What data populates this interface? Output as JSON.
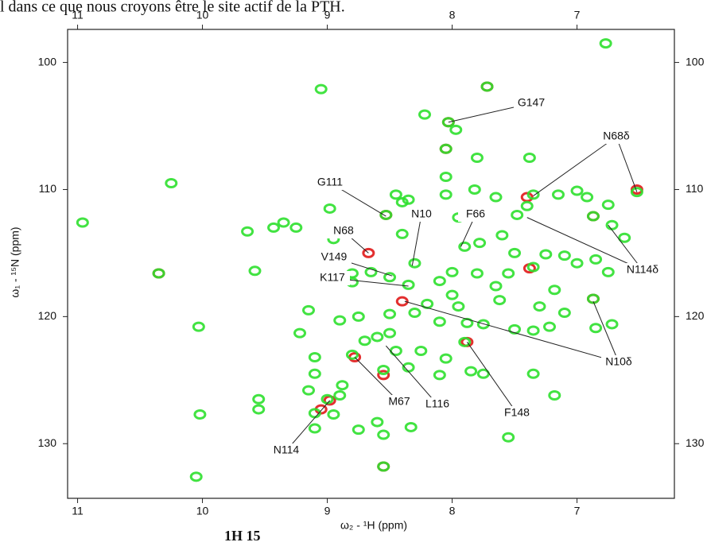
{
  "caption_top": "l dans ce que nous croyons être le site actif de la PTH.",
  "caption_bottom": "1H 15",
  "chart_data": {
    "type": "scatter",
    "x_label": "ω₂ - ¹H (ppm)",
    "y_label": "ω₁ - ¹⁵N (ppm)",
    "xlim": [
      11.08,
      6.22
    ],
    "ylim": [
      134.3,
      97.4
    ],
    "xticks": [
      11,
      10,
      9,
      8,
      7
    ],
    "yticks": [
      100,
      110,
      120,
      130
    ],
    "series": [
      {
        "color": "#e01818",
        "x": [
          8.03,
          8.53,
          6.52,
          7.4,
          6.87,
          8.78,
          8.55,
          7.88,
          8.98,
          9.05,
          10.35,
          8.55,
          7.72,
          8.05,
          8.67,
          8.4,
          6.87,
          7.38
        ],
        "y": [
          104.7,
          112.0,
          110.0,
          110.6,
          118.6,
          123.2,
          124.6,
          122.0,
          126.6,
          127.3,
          116.6,
          131.8,
          101.9,
          106.8,
          115.0,
          118.8,
          112.1,
          116.2
        ]
      },
      {
        "color": "#2ee02e",
        "x": [
          10.96,
          10.25,
          10.35,
          10.03,
          10.02,
          10.05,
          9.64,
          9.58,
          9.43,
          9.35,
          9.25,
          9.05,
          8.98,
          8.95,
          9.22,
          9.15,
          9.1,
          9.1,
          9.15,
          9.55,
          9.55,
          9.1,
          9.0,
          8.95,
          8.9,
          8.88,
          9.1,
          8.75,
          8.6,
          8.55,
          8.55,
          8.33,
          8.55,
          8.35,
          8.25,
          8.05,
          8.1,
          7.9,
          7.85,
          7.75,
          7.55,
          7.35,
          7.18,
          6.87,
          6.85,
          6.72,
          7.35,
          7.5,
          7.62,
          7.75,
          7.88,
          8.1,
          8.3,
          8.5,
          8.75,
          8.9,
          8.7,
          8.6,
          8.5,
          8.45,
          8.8,
          8.35,
          8.5,
          8.65,
          8.8,
          8.8,
          8.3,
          8.4,
          8.4,
          8.45,
          8.35,
          8.53,
          8.22,
          8.03,
          7.97,
          8.05,
          7.72,
          7.8,
          7.82,
          7.65,
          8.05,
          8.05,
          7.95,
          7.9,
          7.78,
          7.6,
          7.48,
          7.4,
          7.38,
          7.35,
          7.15,
          7.0,
          6.92,
          6.87,
          6.75,
          6.72,
          6.62,
          6.52,
          6.77,
          7.5,
          7.35,
          7.25,
          7.1,
          7.0,
          6.85,
          6.75,
          7.18,
          7.3,
          7.22,
          7.55,
          7.65,
          7.8,
          8.0,
          8.1,
          8.0,
          7.95,
          8.2,
          7.1
        ],
        "y": [
          112.6,
          109.5,
          116.6,
          120.8,
          127.7,
          132.6,
          113.3,
          116.4,
          113.0,
          112.6,
          113.0,
          102.1,
          111.5,
          113.9,
          121.3,
          119.5,
          123.2,
          124.5,
          125.8,
          126.5,
          127.3,
          127.6,
          126.5,
          127.7,
          126.2,
          125.4,
          128.8,
          128.9,
          128.3,
          129.3,
          131.8,
          128.7,
          124.2,
          124.0,
          122.7,
          123.3,
          124.6,
          122.0,
          124.3,
          124.5,
          129.5,
          124.5,
          126.2,
          118.6,
          120.9,
          120.6,
          121.1,
          121.0,
          118.7,
          120.6,
          120.5,
          120.4,
          119.7,
          119.8,
          120.0,
          120.3,
          121.9,
          121.6,
          121.3,
          122.7,
          123.0,
          117.5,
          116.9,
          116.5,
          116.6,
          117.3,
          115.8,
          113.5,
          111.0,
          110.4,
          110.8,
          112.0,
          104.1,
          104.7,
          105.3,
          106.8,
          101.9,
          107.5,
          110.0,
          110.6,
          109.0,
          110.4,
          112.2,
          114.5,
          114.2,
          113.6,
          112.0,
          111.3,
          107.5,
          110.4,
          110.4,
          110.1,
          110.6,
          112.1,
          111.2,
          112.8,
          113.8,
          110.2,
          98.5,
          115.0,
          116.1,
          115.1,
          115.2,
          115.8,
          115.5,
          116.5,
          117.9,
          119.2,
          120.8,
          116.6,
          117.6,
          116.6,
          116.5,
          117.2,
          118.3,
          119.2,
          119.0,
          119.7
        ]
      }
    ],
    "annotations": [
      {
        "text": "G147",
        "targets": [
          [
            8.03,
            104.7
          ]
        ]
      },
      {
        "text": "N68δ",
        "targets": [
          [
            7.35,
            110.5
          ],
          [
            6.52,
            110.2
          ]
        ]
      },
      {
        "text": "G111",
        "targets": [
          [
            8.53,
            112.1
          ]
        ]
      },
      {
        "text": "N10",
        "targets": [
          [
            8.32,
            116.0
          ]
        ]
      },
      {
        "text": "F66",
        "targets": [
          [
            7.93,
            114.5
          ]
        ]
      },
      {
        "text": "N68",
        "targets": [
          [
            8.67,
            115.0
          ]
        ]
      },
      {
        "text": "V149",
        "targets": [
          [
            8.48,
            116.8
          ]
        ]
      },
      {
        "text": "K117",
        "targets": [
          [
            8.35,
            117.6
          ]
        ]
      },
      {
        "text": "N114δ",
        "targets": [
          [
            7.4,
            112.2
          ],
          [
            6.75,
            112.8
          ]
        ]
      },
      {
        "text": "N10δ",
        "targets": [
          [
            8.38,
            118.8
          ],
          [
            6.87,
            118.8
          ]
        ]
      },
      {
        "text": "M67",
        "targets": [
          [
            8.78,
            123.2
          ]
        ]
      },
      {
        "text": "L116",
        "targets": [
          [
            8.53,
            122.3
          ]
        ]
      },
      {
        "text": "F148",
        "targets": [
          [
            7.88,
            122.0
          ]
        ]
      },
      {
        "text": "N114",
        "targets": [
          [
            8.98,
            126.6
          ]
        ]
      }
    ]
  }
}
